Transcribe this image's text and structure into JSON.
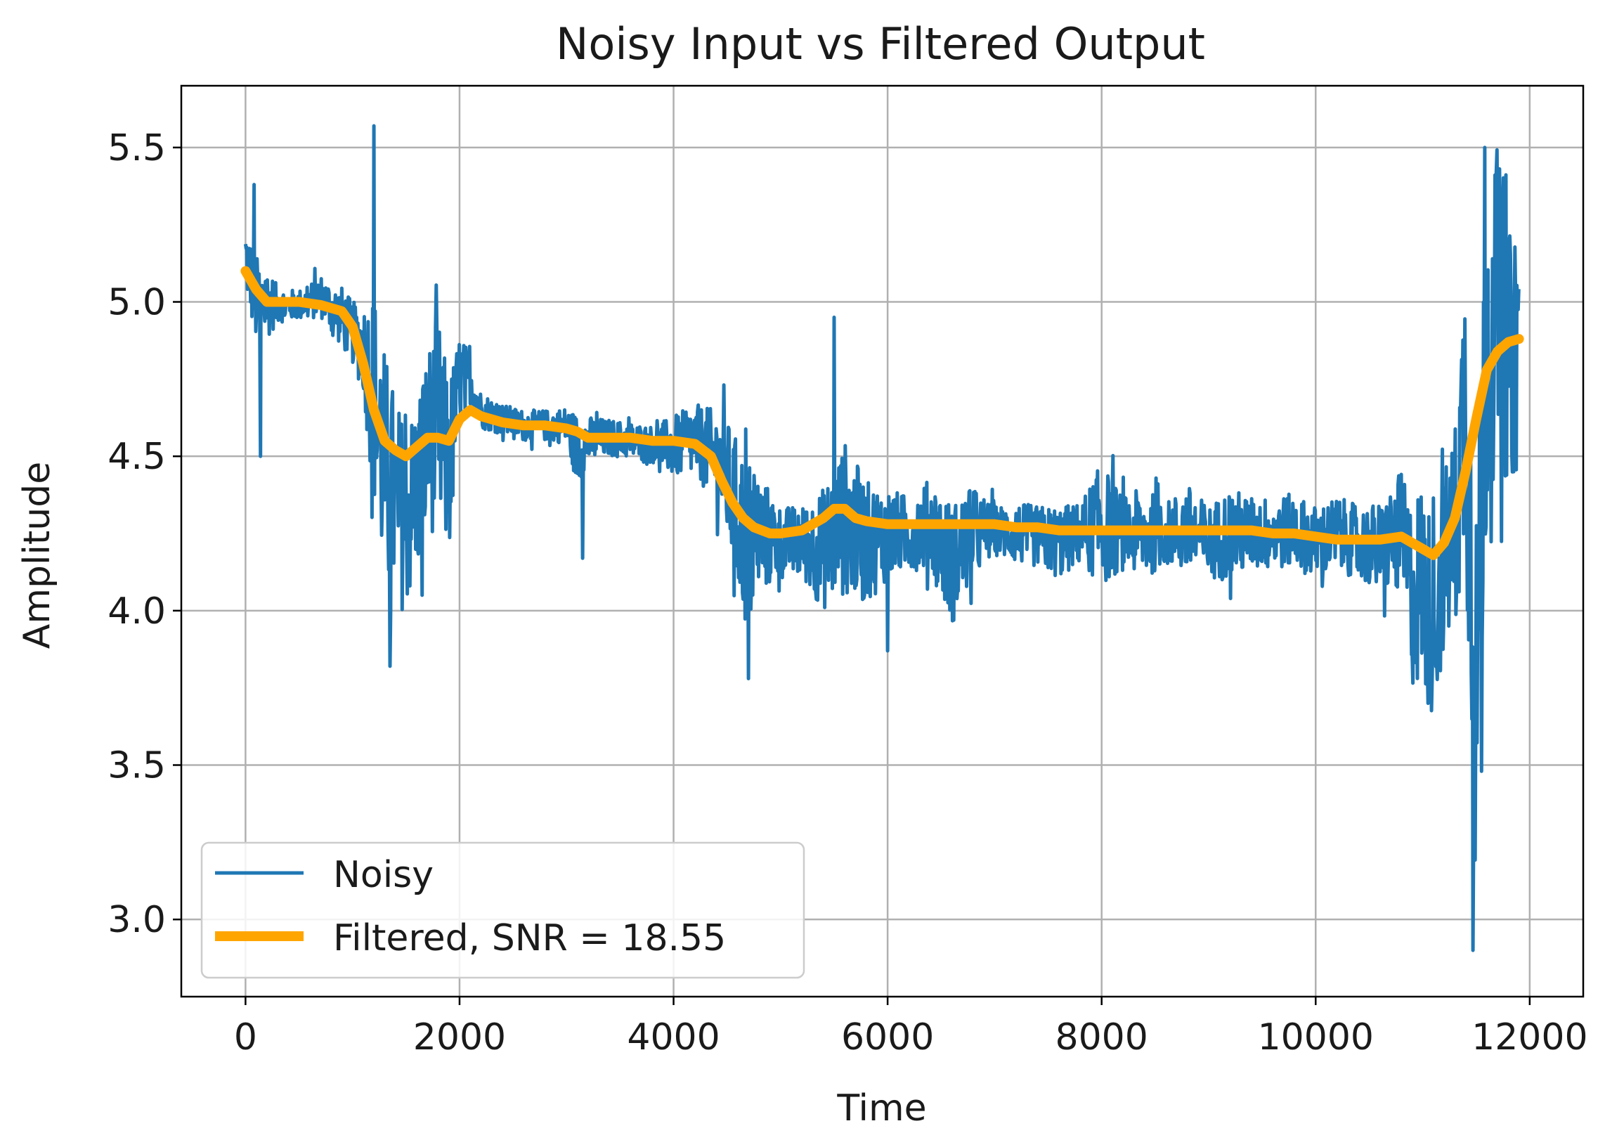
{
  "chart_data": {
    "type": "line",
    "title": "Noisy Input vs Filtered Output",
    "xlabel": "Time",
    "ylabel": "Amplitude",
    "xlim": [
      -600,
      12500
    ],
    "ylim": [
      2.75,
      5.7
    ],
    "x_ticks": [
      0,
      2000,
      4000,
      6000,
      8000,
      10000,
      12000
    ],
    "y_ticks": [
      3.0,
      3.5,
      4.0,
      4.5,
      5.0,
      5.5
    ],
    "x_tick_labels": [
      "0",
      "2000",
      "4000",
      "6000",
      "8000",
      "10000",
      "12000"
    ],
    "y_tick_labels": [
      "3.0",
      "3.5",
      "4.0",
      "4.5",
      "5.0",
      "5.5"
    ],
    "grid": true,
    "legend_position": "lower-left",
    "series": [
      {
        "name": "Noisy",
        "color": "#1f77b4",
        "kind": "noisy",
        "x": [
          0,
          100,
          200,
          300,
          400,
          500,
          600,
          700,
          800,
          900,
          1000,
          1100,
          1200,
          1300,
          1400,
          1500,
          1600,
          1700,
          1800,
          1900,
          2000,
          2100,
          2200,
          2400,
          2600,
          2800,
          3000,
          3100,
          3200,
          3400,
          3600,
          3800,
          4000,
          4200,
          4400,
          4500,
          4600,
          4700,
          4800,
          5000,
          5200,
          5400,
          5600,
          5800,
          6000,
          6200,
          6400,
          6600,
          6800,
          7000,
          7200,
          7400,
          7600,
          7800,
          8000,
          8200,
          8400,
          8600,
          8800,
          9000,
          9200,
          9400,
          9600,
          9800,
          10000,
          10200,
          10400,
          10600,
          10800,
          10900,
          11000,
          11100,
          11200,
          11300,
          11400,
          11500,
          11600,
          11700,
          11800,
          11900
        ],
        "y": [
          5.15,
          5.0,
          5.0,
          4.99,
          4.99,
          4.99,
          5.0,
          5.02,
          4.98,
          4.95,
          4.9,
          4.85,
          4.7,
          4.45,
          4.35,
          4.3,
          4.4,
          4.55,
          4.6,
          4.45,
          4.75,
          4.75,
          4.65,
          4.62,
          4.6,
          4.6,
          4.6,
          4.52,
          4.55,
          4.56,
          4.55,
          4.54,
          4.53,
          4.55,
          4.5,
          4.42,
          4.3,
          4.2,
          4.25,
          4.22,
          4.22,
          4.2,
          4.3,
          4.22,
          4.25,
          4.25,
          4.28,
          4.15,
          4.25,
          4.26,
          4.25,
          4.24,
          4.22,
          4.25,
          4.28,
          4.25,
          4.25,
          4.25,
          4.26,
          4.22,
          4.25,
          4.25,
          4.25,
          4.26,
          4.22,
          4.25,
          4.22,
          4.2,
          4.25,
          4.05,
          4.1,
          3.95,
          4.15,
          4.25,
          4.7,
          3.7,
          4.9,
          5.0,
          4.8,
          4.9
        ],
        "noise_amplitude": [
          0.12,
          0.15,
          0.12,
          0.06,
          0.05,
          0.05,
          0.06,
          0.07,
          0.08,
          0.1,
          0.1,
          0.15,
          0.35,
          0.4,
          0.35,
          0.3,
          0.3,
          0.3,
          0.35,
          0.3,
          0.15,
          0.08,
          0.06,
          0.05,
          0.05,
          0.05,
          0.06,
          0.12,
          0.08,
          0.06,
          0.06,
          0.06,
          0.1,
          0.12,
          0.15,
          0.2,
          0.25,
          0.3,
          0.2,
          0.12,
          0.12,
          0.2,
          0.25,
          0.2,
          0.15,
          0.12,
          0.15,
          0.2,
          0.15,
          0.08,
          0.1,
          0.1,
          0.12,
          0.1,
          0.2,
          0.12,
          0.15,
          0.1,
          0.15,
          0.12,
          0.15,
          0.12,
          0.12,
          0.12,
          0.12,
          0.12,
          0.12,
          0.15,
          0.2,
          0.3,
          0.35,
          0.3,
          0.3,
          0.35,
          0.5,
          0.7,
          0.6,
          0.5,
          0.4,
          0.45
        ],
        "extremes": [
          {
            "x": 1200,
            "y": 5.57
          },
          {
            "x": 1350,
            "y": 3.82
          },
          {
            "x": 80,
            "y": 5.38
          },
          {
            "x": 140,
            "y": 4.5
          },
          {
            "x": 4700,
            "y": 3.78
          },
          {
            "x": 5500,
            "y": 4.95
          },
          {
            "x": 6000,
            "y": 3.87
          },
          {
            "x": 11050,
            "y": 3.7
          },
          {
            "x": 11470,
            "y": 2.9
          },
          {
            "x": 11550,
            "y": 3.48
          },
          {
            "x": 11580,
            "y": 5.5
          },
          {
            "x": 11850,
            "y": 5.46
          },
          {
            "x": 11850,
            "y": 4.45
          },
          {
            "x": 1650,
            "y": 4.05
          },
          {
            "x": 3150,
            "y": 4.17
          }
        ]
      },
      {
        "name": "Filtered, SNR = 18.55",
        "color": "#ffa500",
        "kind": "smooth",
        "x": [
          0,
          100,
          200,
          300,
          500,
          700,
          900,
          1000,
          1100,
          1200,
          1300,
          1400,
          1500,
          1600,
          1700,
          1800,
          1900,
          2000,
          2100,
          2200,
          2400,
          2600,
          2800,
          3000,
          3100,
          3200,
          3400,
          3600,
          3800,
          4000,
          4200,
          4350,
          4450,
          4550,
          4650,
          4750,
          4900,
          5000,
          5200,
          5400,
          5500,
          5600,
          5700,
          5800,
          6000,
          6200,
          6400,
          6600,
          6800,
          7000,
          7200,
          7400,
          7600,
          7800,
          8000,
          8200,
          8400,
          8600,
          8800,
          9000,
          9200,
          9400,
          9600,
          9800,
          10000,
          10200,
          10400,
          10600,
          10800,
          10900,
          11000,
          11100,
          11200,
          11300,
          11400,
          11500,
          11600,
          11700,
          11800,
          11900
        ],
        "y": [
          5.1,
          5.04,
          5.0,
          5.0,
          5.0,
          4.99,
          4.97,
          4.92,
          4.8,
          4.65,
          4.55,
          4.52,
          4.5,
          4.53,
          4.56,
          4.56,
          4.55,
          4.62,
          4.65,
          4.63,
          4.61,
          4.6,
          4.6,
          4.59,
          4.58,
          4.56,
          4.56,
          4.56,
          4.55,
          4.55,
          4.54,
          4.5,
          4.42,
          4.35,
          4.3,
          4.27,
          4.25,
          4.25,
          4.26,
          4.3,
          4.33,
          4.33,
          4.3,
          4.29,
          4.28,
          4.28,
          4.28,
          4.28,
          4.28,
          4.28,
          4.27,
          4.27,
          4.26,
          4.26,
          4.26,
          4.26,
          4.26,
          4.26,
          4.26,
          4.26,
          4.26,
          4.26,
          4.25,
          4.25,
          4.24,
          4.23,
          4.23,
          4.23,
          4.24,
          4.22,
          4.2,
          4.18,
          4.22,
          4.3,
          4.45,
          4.62,
          4.78,
          4.84,
          4.87,
          4.88
        ]
      }
    ]
  }
}
